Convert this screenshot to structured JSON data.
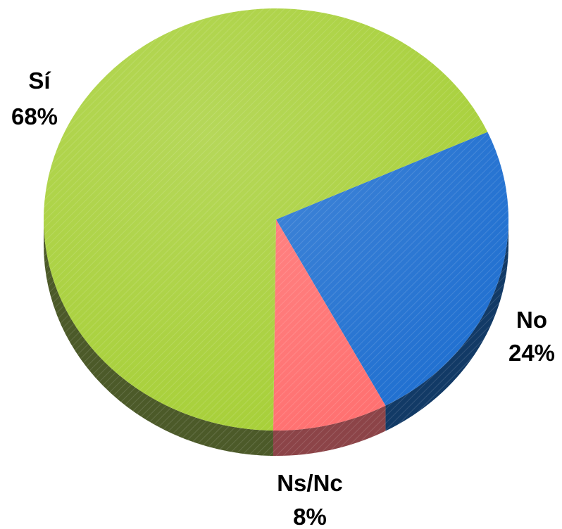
{
  "chart_data": {
    "type": "pie",
    "title": "",
    "three_d": true,
    "hatched_texture": true,
    "slices": [
      {
        "label": "Sí",
        "value": 68,
        "value_label": "68%",
        "color": "#a6cf36",
        "side_color": "#4c5a29"
      },
      {
        "label": "No",
        "value": 24,
        "value_label": "24%",
        "color": "#1f6fd0",
        "side_color": "#123a66"
      },
      {
        "label": "Ns/Nc",
        "value": 8,
        "value_label": "8%",
        "color": "#ff6f6f",
        "side_color": "#8c4448"
      }
    ]
  }
}
